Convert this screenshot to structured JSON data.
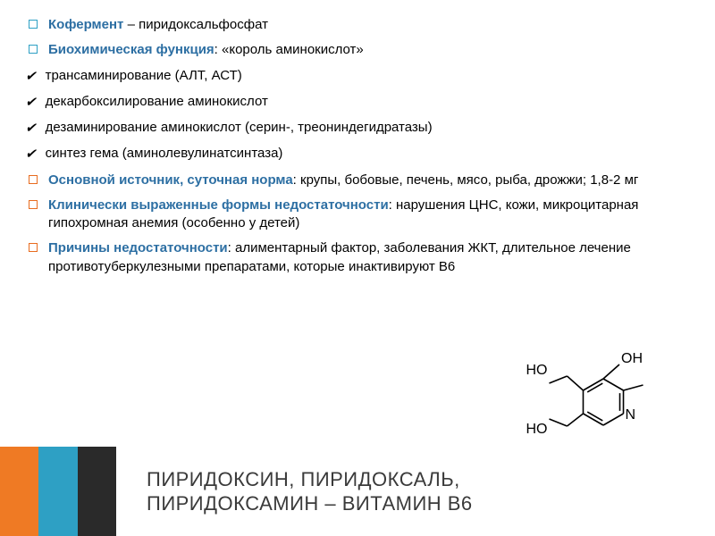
{
  "bullets": [
    {
      "type": "square",
      "color": "#2ea0c4",
      "label": "Кофермент",
      "label_color": "#2d6fa3",
      "text": " – пиридоксальфосфат"
    },
    {
      "type": "square",
      "color": "#2ea0c4",
      "label": "Биохимическая функция",
      "label_color": "#2d6fa3",
      "text": ": «король аминокислот»"
    },
    {
      "type": "check",
      "label": "",
      "text": "трансаминирование (АЛТ, АСТ)"
    },
    {
      "type": "check",
      "label": "",
      "text": "декарбоксилирование  аминокислот"
    },
    {
      "type": "check",
      "label": "",
      "text": "дезаминирование аминокислот (серин-, треониндегидратазы)"
    },
    {
      "type": "check",
      "label": "",
      "text": "синтез гема (аминолевулинатсинтаза)"
    },
    {
      "type": "square",
      "color": "#e86c1f",
      "label": "Основной источник, суточная норма",
      "label_color": "#2d6fa3",
      "text": ": крупы, бобовые, печень, мясо, рыба, дрожжи; 1,8-2 мг"
    },
    {
      "type": "square",
      "color": "#e86c1f",
      "label": "Клинически выраженные формы недостаточности",
      "label_color": "#2d6fa3",
      "text": ": нарушения ЦНС, кожи, микроцитарная гипохромная анемия (особенно у детей)"
    },
    {
      "type": "square",
      "color": "#e86c1f",
      "label": "Причины недостаточности",
      "label_color": "#2d6fa3",
      "text": ": алиментарный фактор, заболевания ЖКТ, длительное лечение противотуберкулезными препаратами, которые инактивируют В6"
    }
  ],
  "footer": {
    "stripe_colors": [
      "#ef7a24",
      "#2ea0c4",
      "#2a2a2a"
    ],
    "title_line1": "ПИРИДОКСИН, ПИРИДОКСАЛЬ,",
    "title_line2": "ПИРИДОКСАМИН – ВИТАМИН В6"
  },
  "molecule": {
    "labels": [
      "HO",
      "OH",
      "HO",
      "N"
    ],
    "stroke": "#000000",
    "stroke_width": 1.6,
    "font_size": 16
  }
}
